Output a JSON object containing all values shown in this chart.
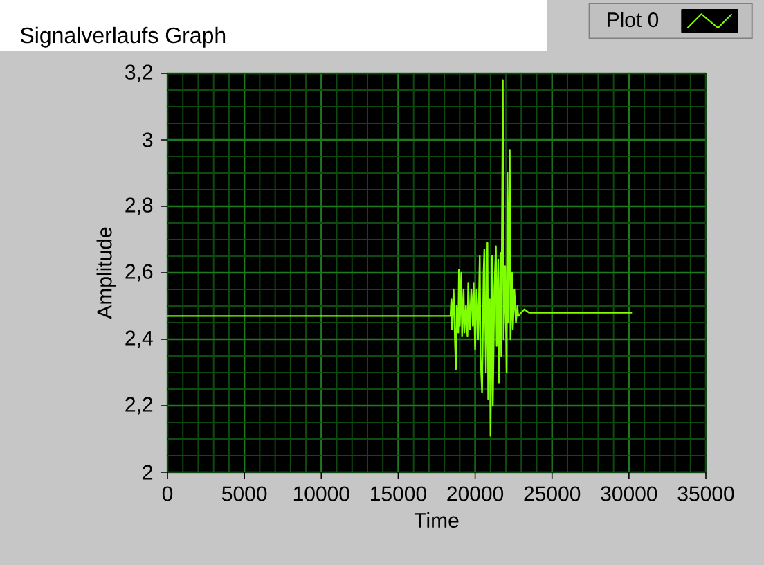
{
  "chart_data": {
    "type": "line",
    "title": "Signalverlaufs Graph",
    "xlabel": "Time",
    "ylabel": "Amplitude",
    "x": [
      0,
      18400,
      18450,
      18500,
      18600,
      18700,
      18750,
      18800,
      18900,
      18950,
      19000,
      19100,
      19150,
      19250,
      19300,
      19400,
      19500,
      19550,
      19650,
      19750,
      19850,
      19900,
      20000,
      20100,
      20200,
      20300,
      20350,
      20450,
      20550,
      20600,
      20700,
      20800,
      20850,
      20950,
      21000,
      21100,
      21150,
      21250,
      21350,
      21400,
      21500,
      21550,
      21650,
      21700,
      21800,
      21850,
      21950,
      22050,
      22100,
      22150,
      22250,
      22300,
      22400,
      22450,
      22550,
      22650,
      22750,
      22800,
      23200,
      23500,
      30200
    ],
    "series": [
      {
        "name": "Plot 0",
        "color": "#80ff00",
        "values": [
          2.47,
          2.47,
          2.52,
          2.43,
          2.55,
          2.38,
          2.31,
          2.5,
          2.42,
          2.61,
          2.44,
          2.6,
          2.41,
          2.55,
          2.42,
          2.5,
          2.41,
          2.57,
          2.43,
          2.55,
          2.44,
          2.57,
          2.37,
          2.55,
          2.4,
          2.65,
          2.35,
          2.24,
          2.6,
          2.67,
          2.3,
          2.69,
          2.22,
          2.52,
          2.11,
          2.65,
          2.2,
          2.55,
          2.68,
          2.38,
          2.64,
          2.27,
          2.66,
          2.35,
          3.18,
          2.4,
          2.62,
          2.3,
          2.9,
          2.45,
          2.97,
          2.4,
          2.6,
          2.43,
          2.55,
          2.45,
          2.5,
          2.47,
          2.49,
          2.48,
          2.48
        ]
      }
    ],
    "xlim": [
      0,
      35000
    ],
    "xticks": [
      0,
      {
        "value": 1000,
        "label": null
      },
      {
        "value": 2000,
        "label": null
      },
      {
        "value": 3000,
        "label": null
      },
      {
        "value": 4000,
        "label": null
      },
      5000,
      {
        "value": 6000,
        "label": null
      },
      {
        "value": 7000,
        "label": null
      },
      {
        "value": 8000,
        "label": null
      },
      {
        "value": 9000,
        "label": null
      },
      10000,
      {
        "value": 11000,
        "label": null
      },
      {
        "value": 12000,
        "label": null
      },
      {
        "value": 13000,
        "label": null
      },
      {
        "value": 14000,
        "label": null
      },
      15000,
      {
        "value": 16000,
        "label": null
      },
      {
        "value": 17000,
        "label": null
      },
      {
        "value": 18000,
        "label": null
      },
      {
        "value": 19000,
        "label": null
      },
      20000,
      {
        "value": 21000,
        "label": null
      },
      {
        "value": 22000,
        "label": null
      },
      {
        "value": 23000,
        "label": null
      },
      {
        "value": 24000,
        "label": null
      },
      25000,
      {
        "value": 26000,
        "label": null
      },
      {
        "value": 27000,
        "label": null
      },
      {
        "value": 28000,
        "label": null
      },
      {
        "value": 29000,
        "label": null
      },
      30000,
      {
        "value": 31000,
        "label": null
      },
      {
        "value": 32000,
        "label": null
      },
      {
        "value": 33000,
        "label": null
      },
      {
        "value": 34000,
        "label": null
      },
      35000
    ],
    "ylim": [
      2,
      3.2
    ],
    "yticks": [
      2,
      {
        "value": 2.05,
        "label": null
      },
      {
        "value": 2.1,
        "label": null
      },
      {
        "value": 2.15,
        "label": null
      },
      {
        "value": 2.2,
        "label": "2,2"
      },
      {
        "value": 2.25,
        "label": null
      },
      {
        "value": 2.3,
        "label": null
      },
      {
        "value": 2.35,
        "label": null
      },
      {
        "value": 2.4,
        "label": "2,4"
      },
      {
        "value": 2.45,
        "label": null
      },
      {
        "value": 2.5,
        "label": null
      },
      {
        "value": 2.55,
        "label": null
      },
      {
        "value": 2.6,
        "label": "2,6"
      },
      {
        "value": 2.65,
        "label": null
      },
      {
        "value": 2.7,
        "label": null
      },
      {
        "value": 2.75,
        "label": null
      },
      {
        "value": 2.8,
        "label": "2,8"
      },
      {
        "value": 2.85,
        "label": null
      },
      {
        "value": 2.9,
        "label": null
      },
      {
        "value": 2.95,
        "label": null
      },
      3,
      {
        "value": 3.05,
        "label": null
      },
      {
        "value": 3.1,
        "label": null
      },
      {
        "value": 3.15,
        "label": null
      },
      {
        "value": 3.2,
        "label": "3,2"
      }
    ],
    "grid": true,
    "legend": "top right",
    "marker": "none",
    "line_style": "solid"
  }
}
